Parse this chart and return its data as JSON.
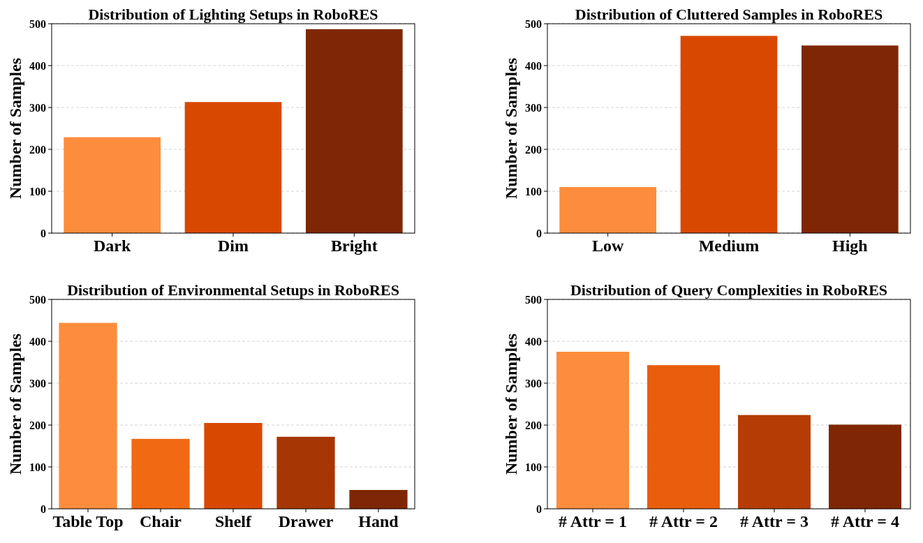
{
  "chart_data": [
    {
      "type": "bar",
      "title": "Distribution of Lighting Setups in RoboRES",
      "ylabel": "Number of Samples",
      "categories": [
        "Dark",
        "Dim",
        "Bright"
      ],
      "values": [
        229,
        313,
        487
      ],
      "colors": [
        "#fd8d3c",
        "#d94801",
        "#7f2704"
      ],
      "ylim": [
        0,
        500
      ],
      "yticks": [
        0,
        100,
        200,
        300,
        400,
        500
      ],
      "grid": "y"
    },
    {
      "type": "bar",
      "title": "Distribution of Cluttered Samples in RoboRES",
      "ylabel": "Number of Samples",
      "categories": [
        "Low",
        "Medium",
        "High"
      ],
      "values": [
        110,
        471,
        448
      ],
      "colors": [
        "#fd8d3c",
        "#d94801",
        "#7f2704"
      ],
      "ylim": [
        0,
        500
      ],
      "yticks": [
        0,
        100,
        200,
        300,
        400,
        500
      ],
      "grid": "y"
    },
    {
      "type": "bar",
      "title": "Distribution of Environmental Setups in RoboRES",
      "ylabel": "Number of Samples",
      "categories": [
        "Table Top",
        "Chair",
        "Shelf",
        "Drawer",
        "Hand"
      ],
      "values": [
        444,
        167,
        205,
        172,
        45
      ],
      "colors": [
        "#fd8d3c",
        "#f16913",
        "#d94801",
        "#a63603",
        "#7f2704"
      ],
      "ylim": [
        0,
        500
      ],
      "yticks": [
        0,
        100,
        200,
        300,
        400,
        500
      ],
      "grid": "y"
    },
    {
      "type": "bar",
      "title": "Distribution of Query Complexities in RoboRES",
      "ylabel": "Number of Samples",
      "categories": [
        "# Attr = 1",
        "# Attr = 2",
        "# Attr = 3",
        "# Attr = 4"
      ],
      "values": [
        375,
        343,
        224,
        201
      ],
      "colors": [
        "#fd8d3c",
        "#e95e0d",
        "#b53d05",
        "#7f2704"
      ],
      "ylim": [
        0,
        500
      ],
      "yticks": [
        0,
        100,
        200,
        300,
        400,
        500
      ],
      "grid": "y"
    }
  ]
}
